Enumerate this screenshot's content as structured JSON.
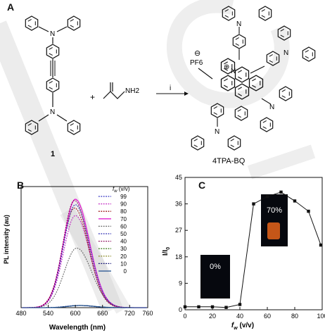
{
  "panels": {
    "a": "A",
    "b": "B",
    "c": "C"
  },
  "scheme": {
    "compound_label": "1",
    "plus": "+",
    "reagent_nh2": "NH2",
    "arrow_label": "i",
    "product_label": "4TPA-BQ",
    "counterion": "PF6",
    "counterion_charge": "⊖",
    "cation_charge": "⊕",
    "ring_n": "N",
    "amine_n": "N"
  },
  "colors": {
    "watermark": "#c8c8c8",
    "vial_orange": "#e8641a",
    "dark_box": "#06080e",
    "line_solid_70": "#e020d0",
    "line_0": "#1f4e8c",
    "line_99": "#2b2bbf",
    "line_90": "#c020c0",
    "line_80": "#9a1010",
    "line_60": "#606060",
    "line_50": "#2424b0",
    "line_40": "#8b0a5a",
    "line_30": "#3a7a1a",
    "line_20": "#909030",
    "line_10": "#0a0a70"
  },
  "chart_data": [
    {
      "type": "line",
      "panel": "B",
      "xlabel": "Wavelength (nm)",
      "ylabel": "PL intensity (au)",
      "xlim": [
        480,
        760
      ],
      "xticks": [
        480,
        540,
        600,
        660,
        720,
        760
      ],
      "x_tick_labels": [
        "480",
        "540",
        "600",
        "660",
        "720",
        "760"
      ],
      "legend_title": "f_w (v/v)",
      "legend_title_parts": [
        "f",
        "w",
        " (v/v)"
      ],
      "legend_position": "top-right",
      "series": [
        {
          "name": "99",
          "style": "dotted",
          "color_key": "line_99",
          "peak_x": 605,
          "peak": 0.02,
          "width": 1.0
        },
        {
          "name": "90",
          "style": "dotted",
          "color_key": "line_90",
          "peak_x": 600,
          "peak": 0.85,
          "width": 1.0
        },
        {
          "name": "80",
          "style": "dotted",
          "color_key": "line_80",
          "peak_x": 598,
          "peak": 0.92,
          "width": 1.0
        },
        {
          "name": "70",
          "style": "solid",
          "color_key": "line_solid_70",
          "peak_x": 600,
          "peak": 1.0,
          "width": 1.0
        },
        {
          "name": "60",
          "style": "dotted",
          "color_key": "line_60",
          "peak_x": 603,
          "peak": 0.55,
          "width": 1.05
        },
        {
          "name": "50",
          "style": "dotted",
          "color_key": "line_50",
          "peak_x": 600,
          "peak": 0.95,
          "width": 1.0
        },
        {
          "name": "40",
          "style": "dotted",
          "color_key": "line_40",
          "peak_x": 598,
          "peak": 0.99,
          "width": 0.97
        },
        {
          "name": "30",
          "style": "dotted",
          "color_key": "line_30",
          "peak_x": 610,
          "peak": 0.02,
          "width": 1.0
        },
        {
          "name": "20",
          "style": "dotted",
          "color_key": "line_20",
          "peak_x": 610,
          "peak": 0.02,
          "width": 1.0
        },
        {
          "name": "10",
          "style": "dotted",
          "color_key": "line_10",
          "peak_x": 610,
          "peak": 0.02,
          "width": 1.0
        },
        {
          "name": "0",
          "style": "solid",
          "color_key": "line_0",
          "peak_x": 610,
          "peak": 0.02,
          "width": 1.0
        }
      ]
    },
    {
      "type": "line",
      "panel": "C",
      "xlabel": "f_w (v/v)",
      "xlabel_parts": [
        "f",
        "w",
        " (v/v)"
      ],
      "ylabel": "I/I0",
      "ylabel_parts": [
        "I/I",
        "0"
      ],
      "xlim": [
        0,
        100
      ],
      "ylim": [
        0,
        45
      ],
      "xticks": [
        0,
        20,
        40,
        60,
        80,
        100
      ],
      "yticks": [
        0,
        9,
        18,
        27,
        36,
        45
      ],
      "x": [
        0,
        10,
        20,
        30,
        40,
        50,
        60,
        70,
        80,
        90,
        99
      ],
      "y": [
        1.0,
        1.0,
        1.0,
        0.8,
        1.8,
        36.0,
        38.5,
        40.0,
        37.0,
        33.5,
        22.0
      ],
      "annotations": [
        "0%",
        "70%"
      ]
    }
  ]
}
